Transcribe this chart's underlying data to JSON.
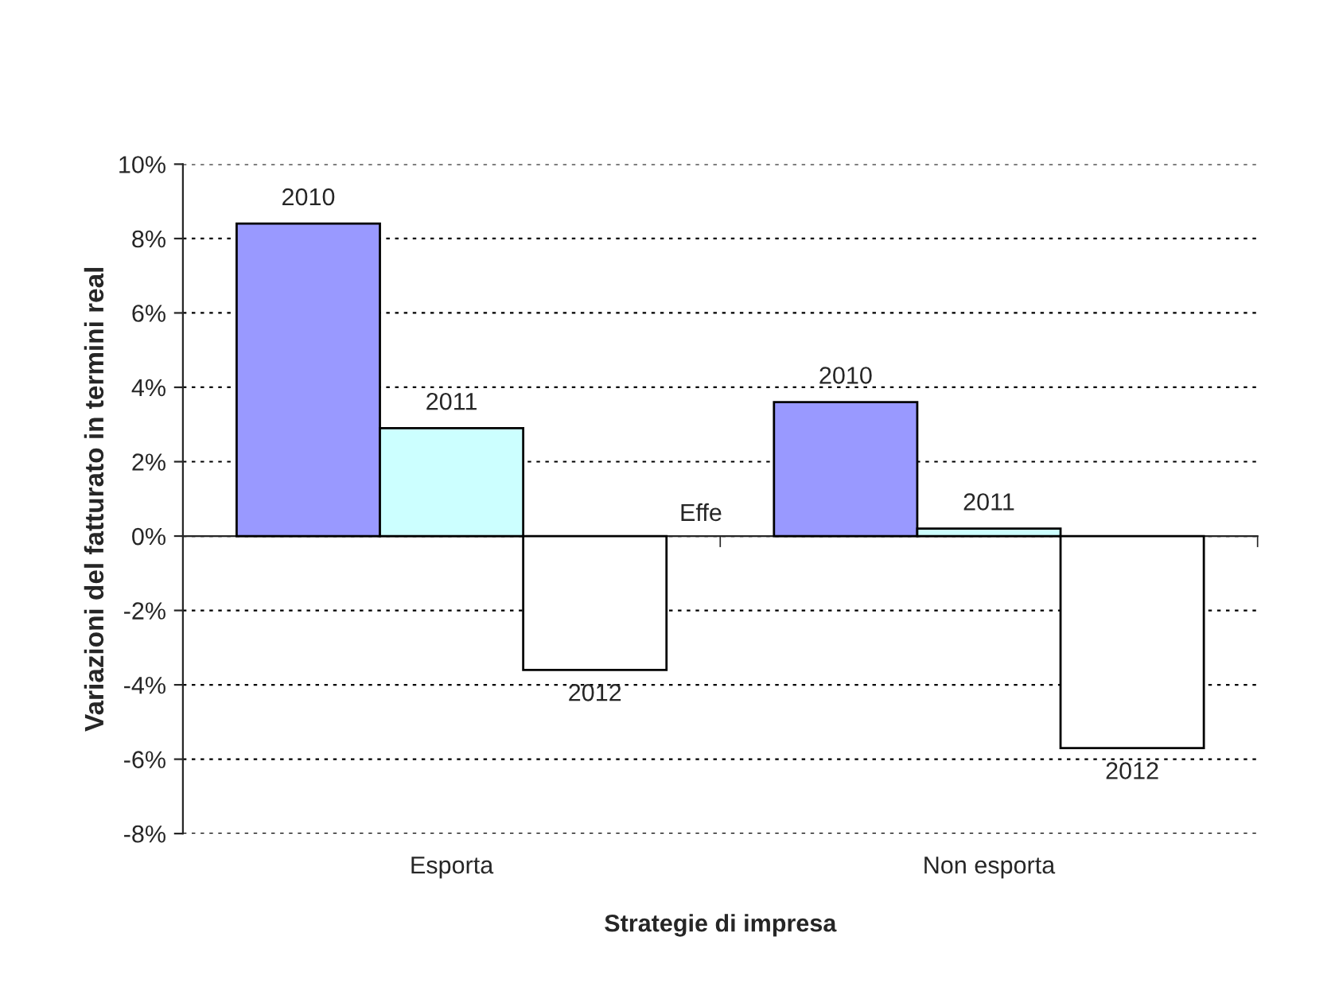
{
  "chart_data": {
    "type": "bar",
    "xlabel": "Strategie di impresa",
    "ylabel": "Variazioni del fatturato in termini real",
    "categories": [
      "Esporta",
      "Non esporta"
    ],
    "series": [
      {
        "name": "2010",
        "color": "#9999ff",
        "values": [
          8.4,
          3.6
        ]
      },
      {
        "name": "2011",
        "color": "#ccffff",
        "values": [
          2.9,
          0.2
        ]
      },
      {
        "name": "2012",
        "color": "#ffffff",
        "values": [
          -3.6,
          -5.7
        ]
      }
    ],
    "ylim": [
      -8,
      10
    ],
    "yticks": [
      {
        "value": -8,
        "label": "-8%"
      },
      {
        "value": -6,
        "label": "-6%"
      },
      {
        "value": -4,
        "label": "-4%"
      },
      {
        "value": -2,
        "label": "-2%"
      },
      {
        "value": 0,
        "label": "0%"
      },
      {
        "value": 2,
        "label": "2%"
      },
      {
        "value": 4,
        "label": "4%"
      },
      {
        "value": 6,
        "label": "6%"
      },
      {
        "value": 8,
        "label": "8%"
      },
      {
        "value": 10,
        "label": "10%"
      }
    ],
    "grid": "y",
    "legend": false,
    "annotations": [
      "Effe"
    ]
  }
}
